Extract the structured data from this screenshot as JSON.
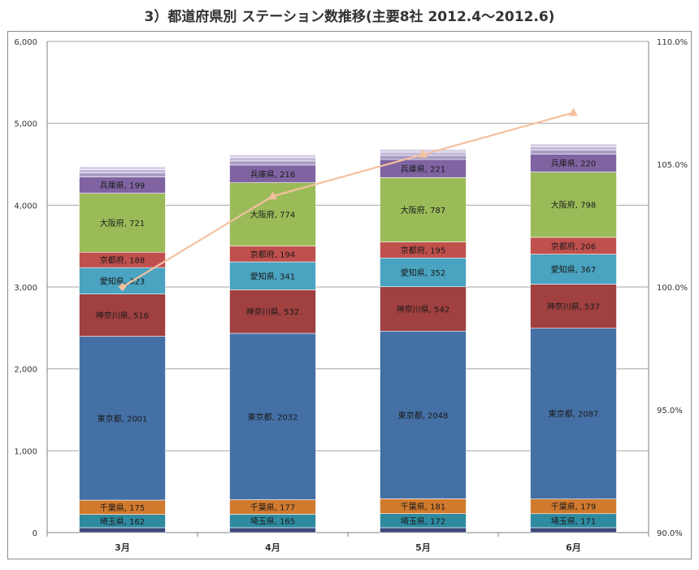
{
  "chart_title": "3）都道府県別 ステーション数推移(主要8社 2012.4～2012.6)",
  "chart_data": {
    "type": "bar",
    "stacked": true,
    "title": "3）都道府県別 ステーション数推移(主要8社 2012.4～2012.6)",
    "categories": [
      "3月",
      "4月",
      "5月",
      "6月"
    ],
    "ylim": [
      0,
      6000
    ],
    "y_ticks": [
      "0",
      "1,000",
      "2,000",
      "3,000",
      "4,000",
      "5,000",
      "6,000"
    ],
    "y2lim": [
      90,
      110
    ],
    "y2_ticks": [
      "90.0%",
      "95.0%",
      "100.0%",
      "105.0%",
      "110.0%"
    ],
    "grid": "horizontal",
    "legend": "none",
    "series": [
      {
        "name": "",
        "color": "#3c4a7a",
        "values": [
          60,
          60,
          60,
          60
        ],
        "label": false
      },
      {
        "name": "埼玉県",
        "color": "#2f8aa0",
        "values": [
          162,
          165,
          172,
          171
        ],
        "label": true
      },
      {
        "name": "千葉県",
        "color": "#d17a2e",
        "values": [
          175,
          177,
          181,
          179
        ],
        "label": true
      },
      {
        "name": "東京都",
        "color": "#4470a5",
        "values": [
          2001,
          2032,
          2048,
          2087
        ],
        "label": true
      },
      {
        "name": "神奈川県",
        "color": "#a04040",
        "values": [
          516,
          532,
          542,
          537
        ],
        "label": true
      },
      {
        "name": "愛知県",
        "color": "#4aa3c0",
        "values": [
          323,
          341,
          352,
          367
        ],
        "label": true
      },
      {
        "name": "京都府",
        "color": "#c0504d",
        "values": [
          188,
          194,
          195,
          206
        ],
        "label": true
      },
      {
        "name": "大阪府",
        "color": "#9bbb59",
        "values": [
          721,
          774,
          787,
          798
        ],
        "label": true
      },
      {
        "name": "兵庫県",
        "color": "#8064a2",
        "values": [
          199,
          216,
          221,
          220
        ],
        "label": true
      },
      {
        "name": "",
        "color": "#a99cc4",
        "values": [
          50,
          50,
          50,
          50
        ],
        "label": false
      },
      {
        "name": "",
        "color": "#c2b8d8",
        "values": [
          40,
          40,
          40,
          40
        ],
        "label": false
      },
      {
        "name": "",
        "color": "#d8d0e6",
        "values": [
          35,
          35,
          35,
          35
        ],
        "label": false
      }
    ],
    "line_series": {
      "name": "",
      "axis": "right",
      "color": "#f4c0a0",
      "values": [
        100.0,
        103.7,
        105.4,
        107.1
      ]
    }
  }
}
